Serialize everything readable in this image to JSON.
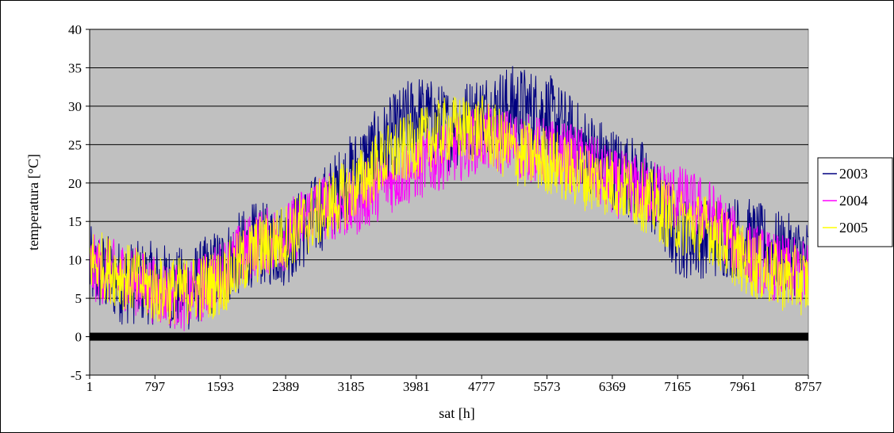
{
  "chart_data": {
    "type": "line",
    "title": "",
    "xlabel": "sat [h]",
    "ylabel": "temperatura [°C]",
    "xlim": [
      1,
      8757
    ],
    "ylim": [
      -5,
      40
    ],
    "x_ticks": [
      "1",
      "797",
      "1593",
      "2389",
      "3185",
      "3981",
      "4777",
      "5573",
      "6369",
      "7165",
      "7961",
      "8757"
    ],
    "y_ticks": [
      "-5",
      "0",
      "5",
      "10",
      "15",
      "20",
      "25",
      "30",
      "35",
      "40"
    ],
    "grid": "horizontal",
    "legend_position": "right",
    "plot_background": "#c0c0c0",
    "series": [
      {
        "name": "2003",
        "color": "#000080",
        "x": [
          1,
          400,
          797,
          1195,
          1593,
          1991,
          2389,
          2787,
          3185,
          3583,
          3981,
          4379,
          4777,
          5175,
          5573,
          5971,
          6369,
          6767,
          7165,
          7563,
          7961,
          8359,
          8757
        ],
        "y": [
          9,
          7,
          7,
          6,
          9,
          12,
          12,
          16,
          21,
          25,
          29,
          27,
          29,
          30,
          29,
          25,
          22,
          20,
          13,
          13,
          13,
          11,
          10
        ]
      },
      {
        "name": "2004",
        "color": "#ff00ff",
        "x": [
          1,
          400,
          797,
          1195,
          1593,
          1991,
          2389,
          2787,
          3185,
          3583,
          3981,
          4379,
          4777,
          5175,
          5573,
          5971,
          6369,
          6767,
          7165,
          7563,
          7961,
          8359,
          8757
        ],
        "y": [
          9,
          8,
          6,
          5,
          8,
          12,
          13,
          17,
          17,
          20,
          22,
          24,
          26,
          25,
          24,
          23,
          20,
          19,
          18,
          16,
          11,
          9,
          8
        ]
      },
      {
        "name": "2005",
        "color": "#ffff00",
        "x": [
          1,
          400,
          797,
          1195,
          1593,
          1991,
          2389,
          2787,
          3185,
          3583,
          3981,
          4379,
          4777,
          5175,
          5573,
          5971,
          6369,
          6767,
          7165,
          7563,
          7961,
          8359,
          8757
        ],
        "y": [
          10,
          8,
          6,
          6,
          7,
          11,
          13,
          16,
          19,
          23,
          25,
          27,
          27,
          24,
          23,
          21,
          20,
          18,
          15,
          14,
          10,
          8,
          7
        ]
      }
    ]
  }
}
